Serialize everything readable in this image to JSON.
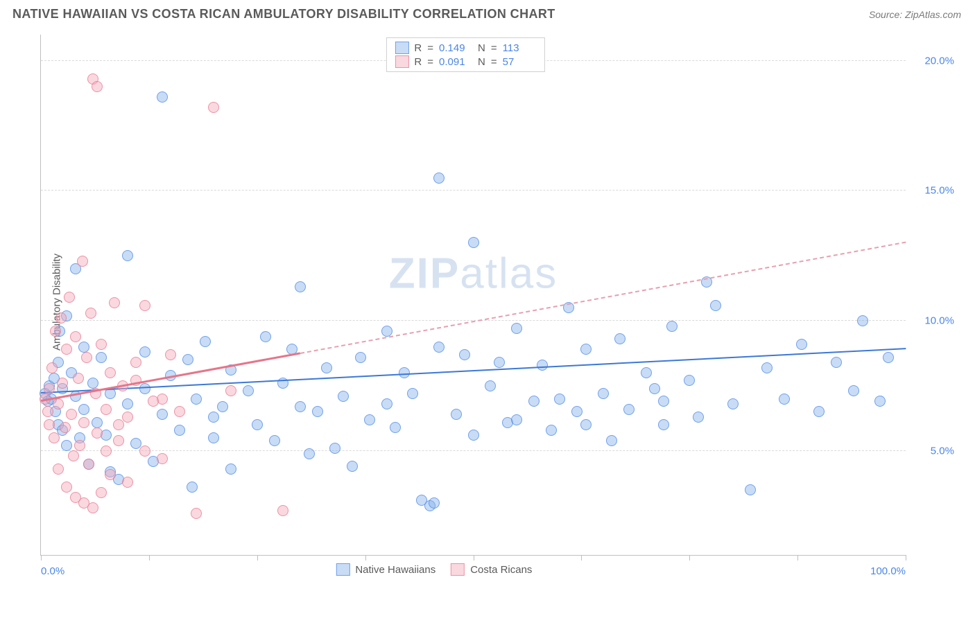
{
  "header": {
    "title": "NATIVE HAWAIIAN VS COSTA RICAN AMBULATORY DISABILITY CORRELATION CHART",
    "source": "Source: ZipAtlas.com"
  },
  "chart": {
    "type": "scatter",
    "ylabel": "Ambulatory Disability",
    "xlim": [
      0,
      100
    ],
    "ylim": [
      1,
      21
    ],
    "xticks": [
      0,
      12.5,
      25,
      37.5,
      50,
      62.5,
      75,
      87.5,
      100
    ],
    "xtick_labels": {
      "0": "0.0%",
      "100": "100.0%"
    },
    "yticks": [
      5,
      10,
      15,
      20
    ],
    "ytick_labels": [
      "5.0%",
      "10.0%",
      "15.0%",
      "20.0%"
    ],
    "grid_color": "#d9d9d9",
    "background_color": "#ffffff",
    "marker_size": 16,
    "series": [
      {
        "id": "a",
        "name": "Native Hawaiians",
        "color_fill": "rgba(133,178,232,0.45)",
        "color_stroke": "rgba(74,134,232,0.7)",
        "trend_color": "#3b78d8",
        "R": "0.149",
        "N": "113",
        "trend": {
          "x1": 0,
          "y1": 7.2,
          "x2": 100,
          "y2": 8.9,
          "dashed_after_x": null
        },
        "points": [
          [
            0.5,
            7.2
          ],
          [
            0.8,
            6.9
          ],
          [
            1,
            7.5
          ],
          [
            1.2,
            7.0
          ],
          [
            1.5,
            7.8
          ],
          [
            1.7,
            6.5
          ],
          [
            2,
            8.4
          ],
          [
            2,
            6.0
          ],
          [
            2.2,
            9.6
          ],
          [
            2.5,
            7.4
          ],
          [
            2.5,
            5.8
          ],
          [
            3,
            5.2
          ],
          [
            3,
            10.2
          ],
          [
            3.5,
            8.0
          ],
          [
            4,
            7.1
          ],
          [
            4,
            12.0
          ],
          [
            4.5,
            5.5
          ],
          [
            5,
            6.6
          ],
          [
            5,
            9.0
          ],
          [
            5.5,
            4.5
          ],
          [
            6,
            7.6
          ],
          [
            6.5,
            6.1
          ],
          [
            7,
            8.6
          ],
          [
            7.5,
            5.6
          ],
          [
            8,
            7.2
          ],
          [
            8,
            4.2
          ],
          [
            9,
            3.9
          ],
          [
            10,
            12.5
          ],
          [
            10,
            6.8
          ],
          [
            11,
            5.3
          ],
          [
            12,
            7.4
          ],
          [
            12,
            8.8
          ],
          [
            13,
            4.6
          ],
          [
            14,
            18.6
          ],
          [
            14,
            6.4
          ],
          [
            15,
            7.9
          ],
          [
            16,
            5.8
          ],
          [
            17,
            8.5
          ],
          [
            17.5,
            3.6
          ],
          [
            18,
            7.0
          ],
          [
            19,
            9.2
          ],
          [
            20,
            5.5
          ],
          [
            21,
            6.7
          ],
          [
            22,
            8.1
          ],
          [
            22,
            4.3
          ],
          [
            24,
            7.3
          ],
          [
            25,
            6.0
          ],
          [
            26,
            9.4
          ],
          [
            27,
            5.4
          ],
          [
            28,
            7.6
          ],
          [
            29,
            8.9
          ],
          [
            30,
            11.3
          ],
          [
            31,
            4.9
          ],
          [
            32,
            6.5
          ],
          [
            33,
            8.2
          ],
          [
            34,
            5.1
          ],
          [
            35,
            7.1
          ],
          [
            36,
            4.4
          ],
          [
            37,
            8.6
          ],
          [
            38,
            6.2
          ],
          [
            40,
            9.6
          ],
          [
            41,
            5.9
          ],
          [
            42,
            8.0
          ],
          [
            43,
            7.2
          ],
          [
            44,
            3.1
          ],
          [
            45,
            2.9
          ],
          [
            45.5,
            3.0
          ],
          [
            46,
            9.0
          ],
          [
            46,
            15.5
          ],
          [
            48,
            6.4
          ],
          [
            49,
            8.7
          ],
          [
            50,
            5.6
          ],
          [
            50,
            13.0
          ],
          [
            52,
            7.5
          ],
          [
            53,
            8.4
          ],
          [
            54,
            6.1
          ],
          [
            55,
            9.7
          ],
          [
            57,
            6.9
          ],
          [
            58,
            8.3
          ],
          [
            59,
            5.8
          ],
          [
            60,
            7.0
          ],
          [
            61,
            10.5
          ],
          [
            62,
            6.5
          ],
          [
            63,
            8.9
          ],
          [
            65,
            7.2
          ],
          [
            66,
            5.4
          ],
          [
            67,
            9.3
          ],
          [
            68,
            6.6
          ],
          [
            70,
            8.0
          ],
          [
            71,
            7.4
          ],
          [
            72,
            6.0
          ],
          [
            73,
            9.8
          ],
          [
            75,
            7.7
          ],
          [
            76,
            6.3
          ],
          [
            77,
            11.5
          ],
          [
            78,
            10.6
          ],
          [
            80,
            6.8
          ],
          [
            82,
            3.5
          ],
          [
            84,
            8.2
          ],
          [
            86,
            7.0
          ],
          [
            88,
            9.1
          ],
          [
            90,
            6.5
          ],
          [
            92,
            8.4
          ],
          [
            94,
            7.3
          ],
          [
            95,
            10.0
          ],
          [
            97,
            6.9
          ],
          [
            98,
            8.6
          ],
          [
            72,
            6.9
          ],
          [
            55,
            6.2
          ],
          [
            40,
            6.8
          ],
          [
            30,
            6.7
          ],
          [
            20,
            6.3
          ],
          [
            63,
            6.0
          ]
        ]
      },
      {
        "id": "b",
        "name": "Costa Ricans",
        "color_fill": "rgba(244,169,186,0.45)",
        "color_stroke": "rgba(230,117,138,0.7)",
        "trend_color": "#e6758a",
        "R": "0.091",
        "N": "57",
        "trend": {
          "x1": 0,
          "y1": 6.9,
          "x2": 100,
          "y2": 13.0,
          "dashed_after_x": 30
        },
        "points": [
          [
            0.5,
            7.0
          ],
          [
            0.8,
            6.5
          ],
          [
            1,
            7.4
          ],
          [
            1,
            6.0
          ],
          [
            1.3,
            8.2
          ],
          [
            1.5,
            5.5
          ],
          [
            1.7,
            9.6
          ],
          [
            2,
            6.8
          ],
          [
            2,
            4.3
          ],
          [
            2.3,
            10.1
          ],
          [
            2.5,
            7.6
          ],
          [
            2.8,
            5.9
          ],
          [
            3,
            8.9
          ],
          [
            3,
            3.6
          ],
          [
            3.3,
            10.9
          ],
          [
            3.5,
            6.4
          ],
          [
            3.8,
            4.8
          ],
          [
            4,
            9.4
          ],
          [
            4,
            3.2
          ],
          [
            4.3,
            7.8
          ],
          [
            4.5,
            5.2
          ],
          [
            4.8,
            12.3
          ],
          [
            5,
            6.1
          ],
          [
            5,
            3.0
          ],
          [
            5.3,
            8.6
          ],
          [
            5.5,
            4.5
          ],
          [
            5.8,
            10.3
          ],
          [
            6,
            2.8
          ],
          [
            6,
            19.3
          ],
          [
            6.3,
            7.2
          ],
          [
            6.5,
            19.0
          ],
          [
            6.5,
            5.7
          ],
          [
            7,
            9.1
          ],
          [
            7,
            3.4
          ],
          [
            7.5,
            6.6
          ],
          [
            8,
            8.0
          ],
          [
            8,
            4.1
          ],
          [
            8.5,
            10.7
          ],
          [
            9,
            5.4
          ],
          [
            9.5,
            7.5
          ],
          [
            10,
            6.3
          ],
          [
            10,
            3.8
          ],
          [
            11,
            8.4
          ],
          [
            12,
            5.0
          ],
          [
            12,
            10.6
          ],
          [
            14,
            7.0
          ],
          [
            14,
            4.7
          ],
          [
            15,
            8.7
          ],
          [
            16,
            6.5
          ],
          [
            18,
            2.6
          ],
          [
            20,
            18.2
          ],
          [
            22,
            7.3
          ],
          [
            11,
            7.7
          ],
          [
            13,
            6.9
          ],
          [
            9,
            6.0
          ],
          [
            7.5,
            5.0
          ],
          [
            28,
            2.7
          ]
        ]
      }
    ],
    "watermark": "ZIPatlas",
    "legend_bottom": [
      "Native Hawaiians",
      "Costa Ricans"
    ]
  }
}
